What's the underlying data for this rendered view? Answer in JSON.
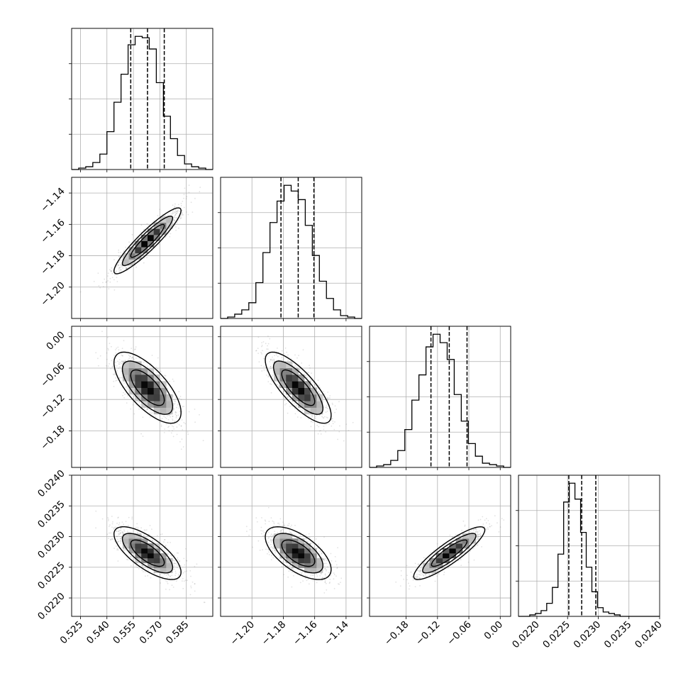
{
  "chart_data": {
    "type": "corner",
    "parameters": [
      {
        "range": [
          0.52,
          0.6
        ],
        "ticks": [
          0.525,
          0.54,
          0.555,
          0.57,
          0.585
        ],
        "tick_labels": [
          "0.525",
          "0.540",
          "0.555",
          "0.570",
          "0.585"
        ],
        "quantiles": [
          0.5535,
          0.563,
          0.5725
        ],
        "mean": 0.563,
        "sd": 0.0095
      },
      {
        "range": [
          -1.22,
          -1.13
        ],
        "ticks": [
          -1.2,
          -1.18,
          -1.16,
          -1.14
        ],
        "tick_labels": [
          "−1.20",
          "−1.18",
          "−1.16",
          "−1.14"
        ],
        "quantiles": [
          -1.1815,
          -1.1705,
          -1.1605
        ],
        "mean": -1.1705,
        "sd": 0.0105
      },
      {
        "range": [
          -0.25,
          0.02
        ],
        "ticks": [
          -0.18,
          -0.12,
          -0.06,
          0.0
        ],
        "tick_labels": [
          "−0.18",
          "−0.12",
          "−0.06",
          "0.00"
        ],
        "quantiles": [
          -0.1325,
          -0.0975,
          -0.0635
        ],
        "mean": -0.0975,
        "sd": 0.034
      },
      {
        "range": [
          0.0217,
          0.024
        ],
        "ticks": [
          0.022,
          0.0225,
          0.023,
          0.0235,
          0.024
        ],
        "tick_labels": [
          "0.0220",
          "0.0225",
          "0.0230",
          "0.0235",
          "0.0240"
        ],
        "quantiles": [
          0.02252,
          0.02273,
          0.02296
        ],
        "mean": 0.02273,
        "sd": 0.000215
      }
    ],
    "histograms": [
      {
        "edges_range": [
          0.52,
          0.6
        ],
        "bins": 20,
        "counts": [
          0,
          1,
          2,
          5,
          11,
          27,
          48,
          68,
          89,
          95,
          94,
          86,
          62,
          38,
          22,
          10,
          4,
          2,
          1,
          0
        ]
      },
      {
        "edges_range": [
          -1.22,
          -1.13
        ],
        "bins": 20,
        "counts": [
          0,
          1,
          3,
          6,
          11,
          25,
          46,
          67,
          82,
          93,
          89,
          83,
          65,
          44,
          26,
          14,
          6,
          2,
          1,
          0
        ]
      },
      {
        "edges_range": [
          -0.25,
          0.02
        ],
        "bins": 20,
        "counts": [
          0,
          1,
          2,
          5,
          12,
          27,
          48,
          66,
          86,
          95,
          89,
          77,
          52,
          33,
          17,
          8,
          3,
          2,
          1,
          0
        ]
      },
      {
        "edges_range": [
          0.0217,
          0.024
        ],
        "bins": 25,
        "counts": [
          0,
          0,
          1,
          2,
          4,
          9,
          20,
          43,
          79,
          92,
          81,
          58,
          34,
          17,
          6,
          3,
          2,
          1,
          0,
          0,
          0,
          0,
          0,
          0,
          0
        ]
      }
    ],
    "correlations": [
      {
        "pair": [
          1,
          0
        ],
        "rho": 0.92
      },
      {
        "pair": [
          2,
          0
        ],
        "rho": -0.7
      },
      {
        "pair": [
          2,
          1
        ],
        "rho": -0.78
      },
      {
        "pair": [
          3,
          0
        ],
        "rho": -0.72
      },
      {
        "pair": [
          3,
          1
        ],
        "rho": -0.62
      },
      {
        "pair": [
          3,
          2
        ],
        "rho": 0.88
      }
    ],
    "contour_levels_sigma": [
      0.5,
      1.0,
      1.5,
      2.0
    ],
    "grid": true,
    "quantiles_shown": [
      0.16,
      0.5,
      0.84
    ],
    "xlabel": "",
    "ylabel": ""
  }
}
